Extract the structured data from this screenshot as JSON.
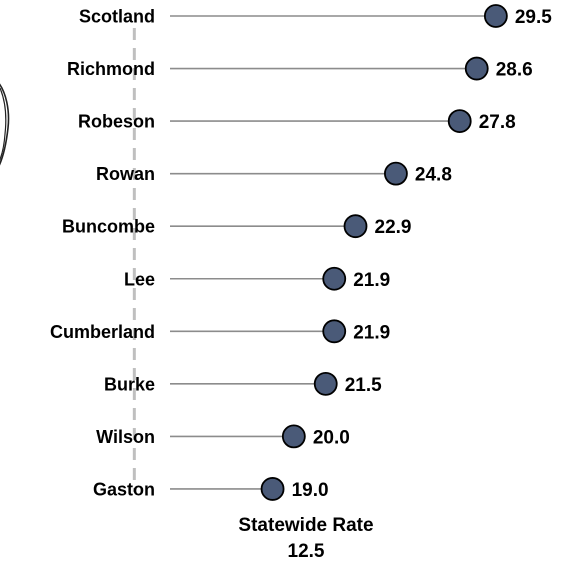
{
  "chart_data": {
    "type": "lollipop",
    "categories": [
      "Scotland",
      "Richmond",
      "Robeson",
      "Rowan",
      "Buncombe",
      "Lee",
      "Cumberland",
      "Burke",
      "Wilson",
      "Gaston"
    ],
    "values": [
      29.5,
      28.6,
      27.8,
      24.8,
      22.9,
      21.9,
      21.9,
      21.5,
      20.0,
      19.0
    ],
    "value_labels": [
      "29.5",
      "28.6",
      "27.8",
      "24.8",
      "22.9",
      "21.9",
      "21.9",
      "21.5",
      "20.0",
      "19.0"
    ],
    "xlim": [
      0,
      30
    ],
    "reference_line": {
      "label": "Statewide Rate",
      "value": 12.5,
      "value_label": "12.5",
      "style": "dashed"
    },
    "colors": {
      "marker": "#4a5a78",
      "stem": "#8c8c8c",
      "reference": "#bfbfbf"
    },
    "grid": false,
    "legend": "none"
  }
}
